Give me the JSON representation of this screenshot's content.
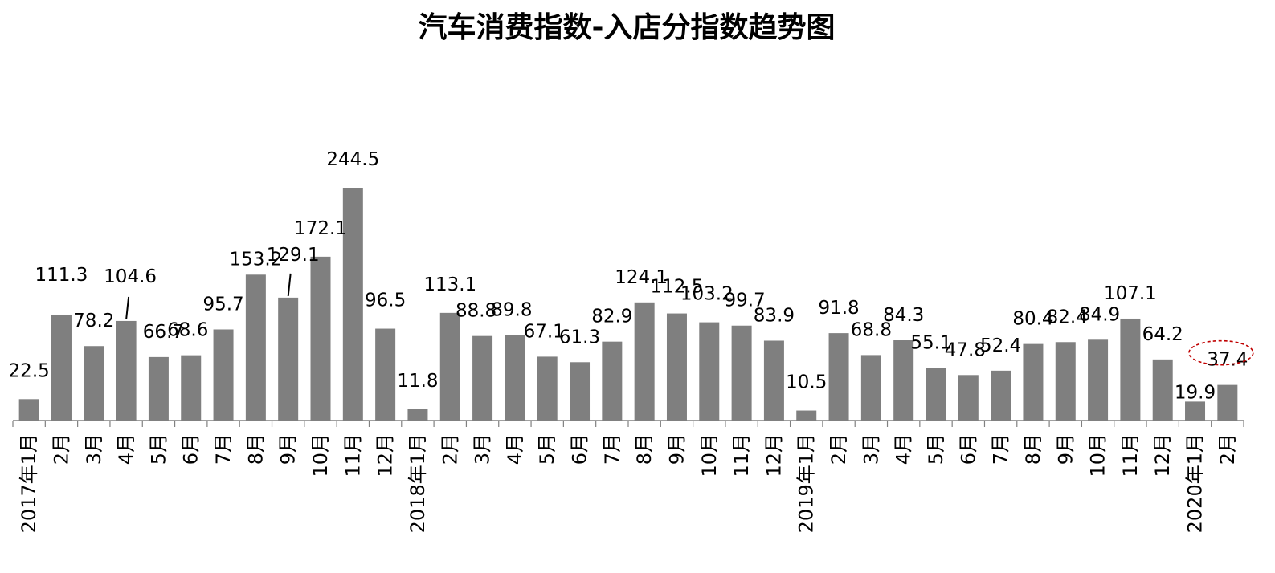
{
  "chart_data": {
    "type": "bar",
    "title": "汽车消费指数-入店分指数趋势图",
    "categories": [
      "2017年1月",
      "2月",
      "3月",
      "4月",
      "5月",
      "6月",
      "7月",
      "8月",
      "9月",
      "10月",
      "11月",
      "12月",
      "2018年1月",
      "2月",
      "3月",
      "4月",
      "5月",
      "6月",
      "7月",
      "8月",
      "9月",
      "10月",
      "11月",
      "12月",
      "2019年1月",
      "2月",
      "3月",
      "4月",
      "5月",
      "6月",
      "7月",
      "8月",
      "9月",
      "10月",
      "11月",
      "12月",
      "2020年1月",
      "2月"
    ],
    "values": [
      22.5,
      111.3,
      78.2,
      104.6,
      66.7,
      68.6,
      95.7,
      153.2,
      129.1,
      172.1,
      244.5,
      96.5,
      11.8,
      113.1,
      88.8,
      89.8,
      67.1,
      61.3,
      82.9,
      124.1,
      112.5,
      103.2,
      99.7,
      83.9,
      10.5,
      91.8,
      68.8,
      84.3,
      55.1,
      47.8,
      52.4,
      80.4,
      82.4,
      84.9,
      107.1,
      64.2,
      19.9,
      37.4
    ],
    "value_labels": [
      "22.5",
      "111.3",
      "78.2",
      "104.6",
      "66.7",
      "68.6",
      "95.7",
      "153.2",
      "129.1",
      "172.1",
      "244.5",
      "96.5",
      "11.8",
      "113.1",
      "88.8",
      "89.8",
      "67.1",
      "61.3",
      "82.9",
      "124.1",
      "112.5",
      "103.2",
      "99.7",
      "83.9",
      "10.5",
      "91.8",
      "68.8",
      "84.3",
      "55.1",
      "47.8",
      "52.4",
      "80.4",
      "82.4",
      "84.9",
      "107.1",
      "64.2",
      "19.9",
      "37.4"
    ],
    "highlighted_index": 37,
    "ylim": [
      0,
      250
    ],
    "grid": false,
    "legend": "none",
    "xlabel": "",
    "ylabel": "",
    "colors": {
      "bar": "#7f7f7f",
      "highlight_ellipse": "#c00000",
      "axis": "#808080"
    }
  }
}
